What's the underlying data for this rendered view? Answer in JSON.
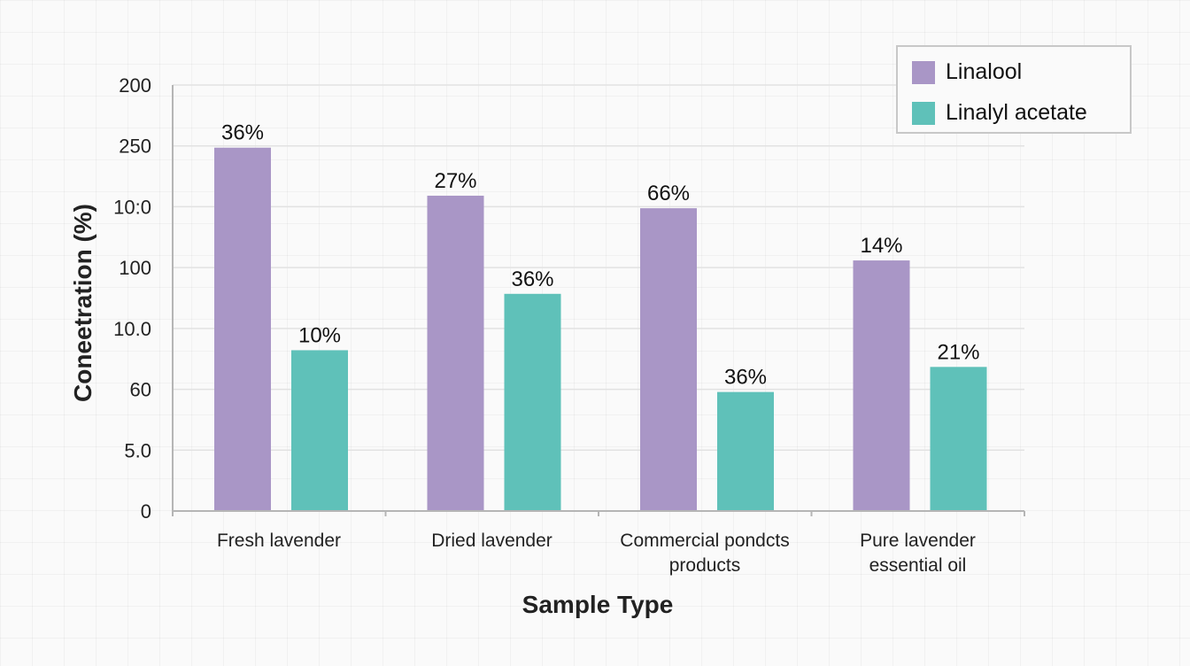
{
  "chart_data": {
    "type": "bar",
    "xlabel": "Sample Type",
    "ylabel": "Coneetration (%)",
    "y_tick_labels": [
      "0",
      "5.0",
      "60",
      "10.0",
      "100",
      "10:0",
      "250",
      "200"
    ],
    "categories": [
      [
        "Fresh lavender"
      ],
      [
        "Dried lavender"
      ],
      [
        "Commercial pondcts",
        "products"
      ],
      [
        "Pure lavender",
        "essential oil"
      ]
    ],
    "series": [
      {
        "name": "Linalool",
        "color": "#a996c6",
        "values": [
          174,
          151,
          145,
          120
        ],
        "labels": [
          "36%",
          "27%",
          "66%",
          "14%"
        ]
      },
      {
        "name": "Linalyl acetate",
        "color": "#5fc1b9",
        "values": [
          77,
          104,
          57,
          69
        ],
        "labels": [
          "10%",
          "36%",
          "36%",
          "21%"
        ]
      }
    ],
    "ylim": [
      0,
      204
    ],
    "grid": true,
    "legend_position": "top-right"
  }
}
